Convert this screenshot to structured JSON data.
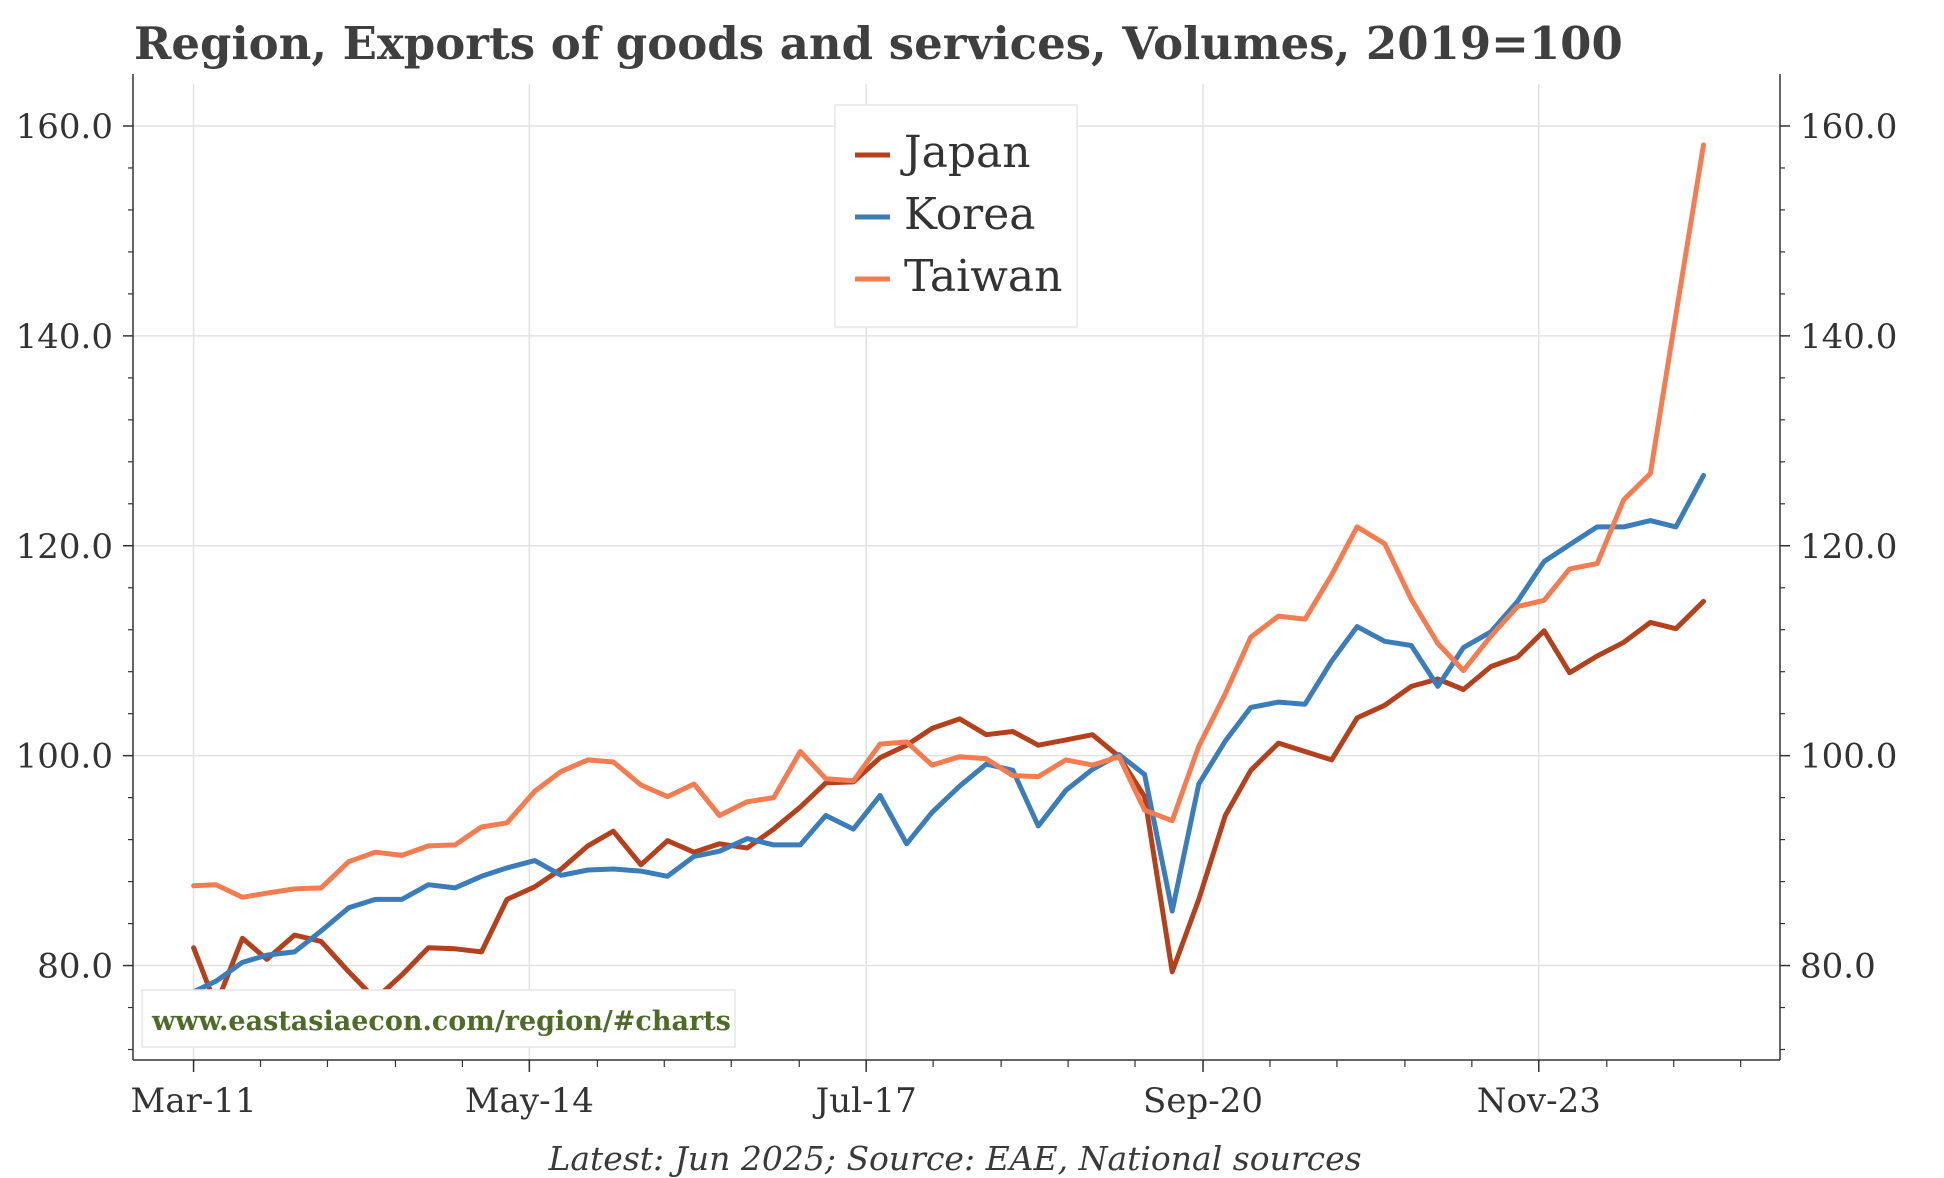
{
  "chart_data": {
    "type": "line",
    "title": "Region, Exports of goods and services, Volumes, 2019=100",
    "source_note": "Latest: Jun 2025; Source: EAE, National sources",
    "watermark": "www.eastasiaecon.com/region/#charts",
    "xlabel": "",
    "ylabel": "",
    "ylim": [
      71,
      164
    ],
    "xlim": [
      2010.6,
      2026.1
    ],
    "y_ticks": [
      80,
      100,
      120,
      140,
      160
    ],
    "y_tick_labels": [
      "80.0",
      "100.0",
      "120.0",
      "140.0",
      "160.0"
    ],
    "x_ticks": [
      2011.17,
      2014.33,
      2017.5,
      2020.67,
      2023.83
    ],
    "x_tick_labels": [
      "Mar-11",
      "May-14",
      "Jul-17",
      "Sep-20",
      "Nov-23"
    ],
    "minor_x_ticks": [
      2011.17,
      2011.8,
      2012.43,
      2013.07,
      2013.7,
      2014.33,
      2014.97,
      2015.6,
      2016.23,
      2016.87,
      2017.5,
      2018.13,
      2018.77,
      2019.4,
      2020.03,
      2020.67,
      2021.3,
      2021.93,
      2022.57,
      2023.2,
      2023.83,
      2024.47,
      2025.1,
      2025.73
    ],
    "minor_y_ticks": [
      72,
      76,
      84,
      88,
      92,
      96,
      104,
      108,
      112,
      116,
      124,
      128,
      132,
      136,
      144,
      148,
      152,
      156
    ],
    "grid": true,
    "legend": "top-center",
    "series": [
      {
        "name": "Japan",
        "color": "#b5401c",
        "x": [
          2011.17,
          2011.38,
          2011.63,
          2011.86,
          2012.12,
          2012.37,
          2012.63,
          2012.88,
          2013.13,
          2013.38,
          2013.63,
          2013.88,
          2014.12,
          2014.38,
          2014.63,
          2014.88,
          2015.12,
          2015.38,
          2015.63,
          2015.88,
          2016.12,
          2016.38,
          2016.63,
          2016.88,
          2017.12,
          2017.38,
          2017.63,
          2017.88,
          2018.12,
          2018.38,
          2018.63,
          2018.88,
          2019.12,
          2019.38,
          2019.63,
          2019.88,
          2020.12,
          2020.38,
          2020.63,
          2020.88,
          2021.12,
          2021.38,
          2021.63,
          2021.88,
          2022.12,
          2022.38,
          2022.63,
          2022.88,
          2023.12,
          2023.38,
          2023.63,
          2023.88,
          2024.12,
          2024.38,
          2024.63,
          2024.88,
          2025.12,
          2025.38
        ],
        "values": [
          81.7,
          76.2,
          82.6,
          80.6,
          82.9,
          82.3,
          79.4,
          76.8,
          79.1,
          81.7,
          81.6,
          81.3,
          86.3,
          87.5,
          89.2,
          91.4,
          92.8,
          89.6,
          91.9,
          90.8,
          91.6,
          91.2,
          93.0,
          95.1,
          97.4,
          97.5,
          99.8,
          101.0,
          102.6,
          103.5,
          102.0,
          102.3,
          101.0,
          101.5,
          102.0,
          99.9,
          96.1,
          79.4,
          86.3,
          94.3,
          98.6,
          101.2,
          100.4,
          99.6,
          103.6,
          104.8,
          106.6,
          107.3,
          106.3,
          108.5,
          109.4,
          111.9,
          107.9,
          109.5,
          110.8,
          112.7,
          112.1,
          114.7
        ]
      },
      {
        "name": "Korea",
        "color": "#3b7dba",
        "x": [
          2011.17,
          2011.38,
          2011.63,
          2011.86,
          2012.12,
          2012.37,
          2012.63,
          2012.88,
          2013.13,
          2013.38,
          2013.63,
          2013.88,
          2014.12,
          2014.38,
          2014.63,
          2014.88,
          2015.12,
          2015.38,
          2015.63,
          2015.88,
          2016.12,
          2016.38,
          2016.63,
          2016.88,
          2017.12,
          2017.38,
          2017.63,
          2017.88,
          2018.12,
          2018.38,
          2018.63,
          2018.88,
          2019.12,
          2019.38,
          2019.63,
          2019.88,
          2020.12,
          2020.38,
          2020.63,
          2020.88,
          2021.12,
          2021.38,
          2021.63,
          2021.88,
          2022.12,
          2022.38,
          2022.63,
          2022.88,
          2023.12,
          2023.38,
          2023.63,
          2023.88,
          2024.12,
          2024.38,
          2024.63,
          2024.88,
          2025.12,
          2025.38
        ],
        "values": [
          77.5,
          78.5,
          80.3,
          81.0,
          81.3,
          83.3,
          85.5,
          86.3,
          86.3,
          87.7,
          87.4,
          88.5,
          89.3,
          90.0,
          88.6,
          89.1,
          89.2,
          89.0,
          88.5,
          90.4,
          90.9,
          92.1,
          91.5,
          91.5,
          94.3,
          93.0,
          96.2,
          91.6,
          94.6,
          97.1,
          99.2,
          98.6,
          93.3,
          96.7,
          98.7,
          100.1,
          98.2,
          85.2,
          97.3,
          101.4,
          104.6,
          105.1,
          104.9,
          109.0,
          112.3,
          110.9,
          110.5,
          106.6,
          110.3,
          111.8,
          114.7,
          118.5,
          120.1,
          121.8,
          121.8,
          122.4,
          121.8,
          126.7
        ]
      },
      {
        "name": "Taiwan",
        "color": "#f47c50",
        "x": [
          2011.17,
          2011.38,
          2011.63,
          2011.86,
          2012.12,
          2012.37,
          2012.63,
          2012.88,
          2013.13,
          2013.38,
          2013.63,
          2013.88,
          2014.12,
          2014.38,
          2014.63,
          2014.88,
          2015.12,
          2015.38,
          2015.63,
          2015.88,
          2016.12,
          2016.38,
          2016.63,
          2016.88,
          2017.12,
          2017.38,
          2017.63,
          2017.88,
          2018.12,
          2018.38,
          2018.63,
          2018.88,
          2019.12,
          2019.38,
          2019.63,
          2019.88,
          2020.12,
          2020.38,
          2020.63,
          2020.88,
          2021.12,
          2021.38,
          2021.63,
          2021.88,
          2022.12,
          2022.38,
          2022.63,
          2022.88,
          2023.12,
          2023.38,
          2023.63,
          2023.88,
          2024.12,
          2024.38,
          2024.63,
          2024.88,
          2025.12,
          2025.38
        ],
        "values": [
          87.6,
          87.7,
          86.5,
          86.9,
          87.3,
          87.4,
          89.9,
          90.8,
          90.5,
          91.4,
          91.5,
          93.2,
          93.6,
          96.6,
          98.5,
          99.6,
          99.4,
          97.2,
          96.1,
          97.3,
          94.3,
          95.6,
          96.0,
          100.4,
          97.8,
          97.6,
          101.1,
          101.3,
          99.1,
          99.9,
          99.7,
          98.1,
          98.0,
          99.6,
          99.1,
          99.9,
          94.8,
          93.8,
          100.9,
          105.9,
          111.3,
          113.3,
          113.0,
          117.2,
          121.8,
          120.2,
          114.9,
          110.7,
          108.1,
          111.4,
          114.2,
          114.8,
          117.8,
          118.3,
          124.4,
          126.9,
          142.0,
          158.2
        ]
      }
    ]
  }
}
